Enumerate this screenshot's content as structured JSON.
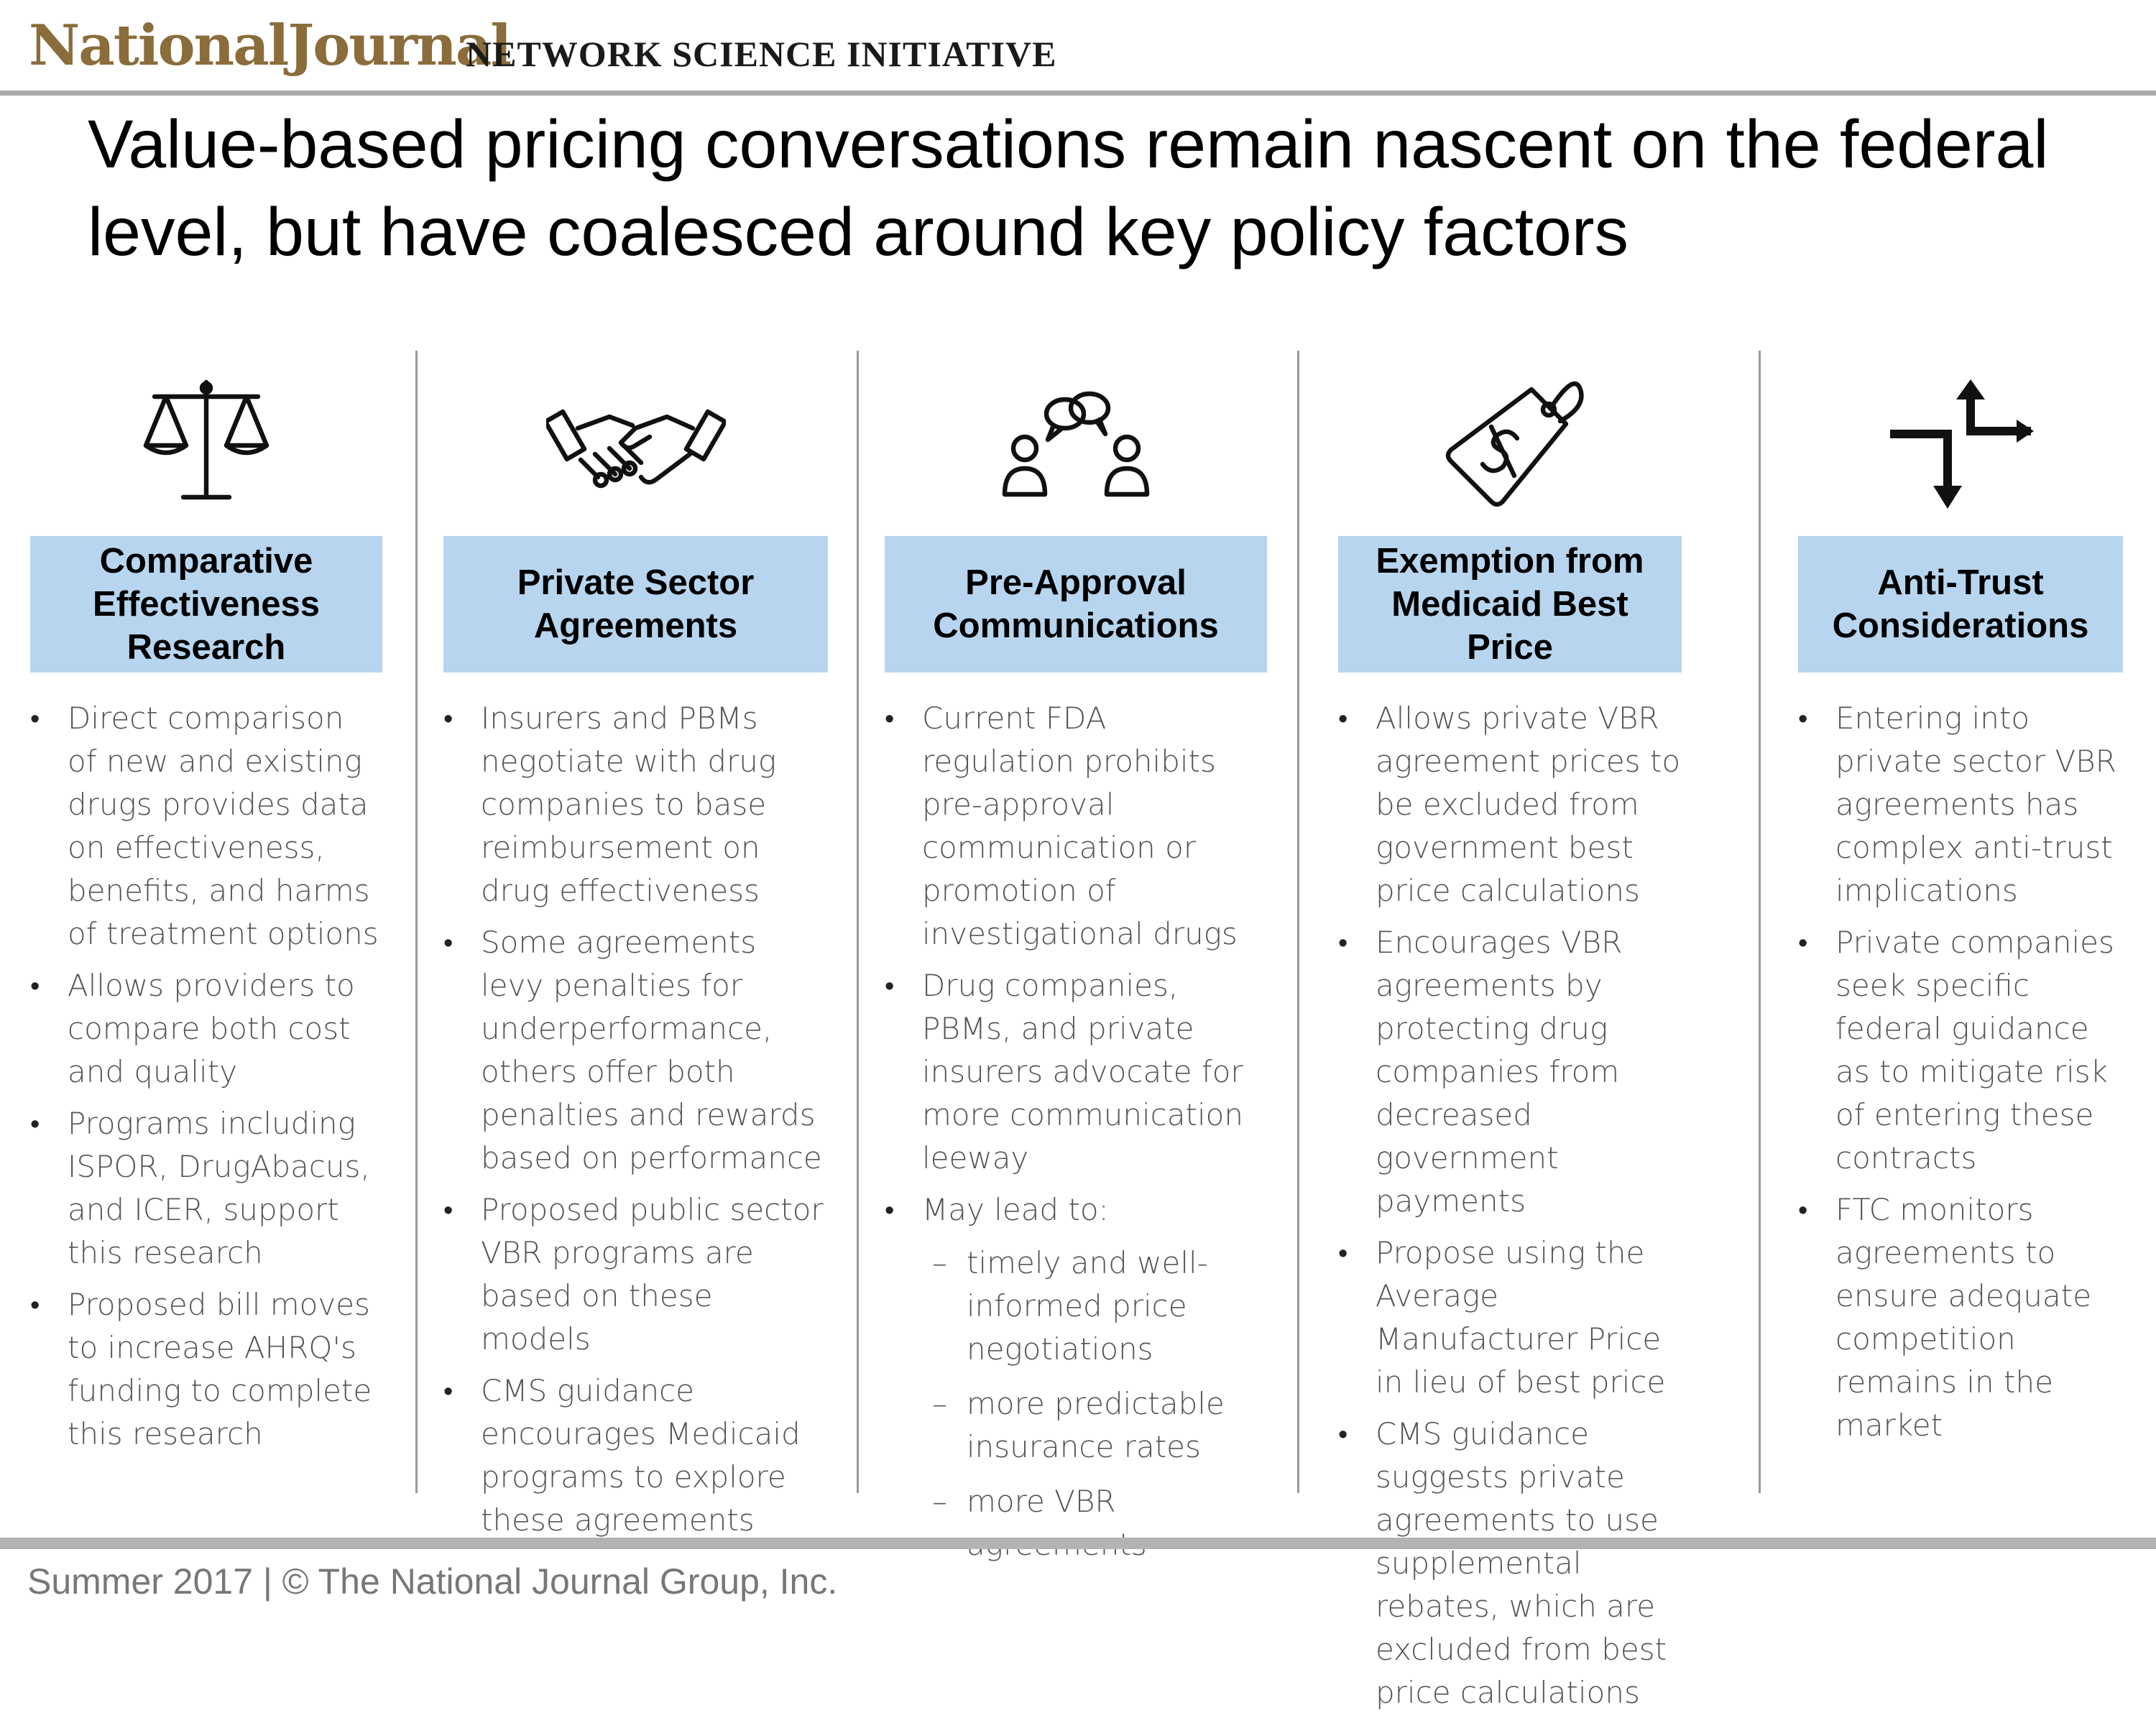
{
  "header": {
    "brand": "NationalJournal",
    "subbrand": "NETWORK SCIENCE INITIATIVE"
  },
  "title": "Value-based pricing conversations remain nascent on the federal level, but have coalesced around key policy factors",
  "columns": [
    {
      "icon": "scales-of-justice-icon",
      "heading": "Comparative Effectiveness Research",
      "bullets": [
        "Direct comparison of new and existing drugs provides data on effectiveness, benefits, and harms of treatment options",
        "Allows providers to compare both cost and quality",
        "Programs including ISPOR, DrugAbacus, and ICER, support this research",
        "Proposed bill moves to increase AHRQ's funding to complete this research"
      ]
    },
    {
      "icon": "handshake-icon",
      "heading": "Private Sector Agreements",
      "bullets": [
        "Insurers and PBMs negotiate with drug companies to base reimbursement on drug effectiveness",
        "Some agreements levy penalties for underperformance, others offer both penalties and rewards based on performance",
        "Proposed public sector VBR programs are based on these models",
        "CMS guidance encourages Medicaid programs to explore these agreements"
      ]
    },
    {
      "icon": "people-conversation-icon",
      "heading": "Pre-Approval Communications",
      "bullets": [
        "Current FDA regulation prohibits pre-approval communication or promotion of investigational drugs",
        "Drug companies, PBMs, and private insurers advocate for more communication leeway",
        "May lead to:"
      ],
      "subbullets": [
        "timely and well-informed price negotiations",
        "more predictable insurance rates",
        "more VBR agreements"
      ]
    },
    {
      "icon": "dollar-price-tag-icon",
      "heading": "Exemption from Medicaid Best Price",
      "bullets": [
        "Allows private VBR agreement prices to be excluded from government best price calculations",
        "Encourages VBR agreements by protecting drug companies from decreased government payments",
        "Propose using the Average Manufacturer Price in lieu of best price",
        "CMS guidance suggests private agreements to use supplemental rebates, which are excluded from best price calculations"
      ]
    },
    {
      "icon": "opposing-arrows-icon",
      "heading": "Anti-Trust Considerations",
      "bullets": [
        "Entering into private sector VBR agreements has complex anti-trust implications",
        "Private companies seek specific federal guidance as to mitigate risk of entering these contracts",
        "FTC monitors agreements to ensure adequate competition remains in the market"
      ]
    }
  ],
  "footer": "Summer 2017 | © The National Journal Group, Inc.",
  "colors": {
    "brand": "#8a6d3b",
    "header_fill": "#b7d5ee",
    "rule": "#aaaaaa",
    "body_text": "#555555"
  }
}
